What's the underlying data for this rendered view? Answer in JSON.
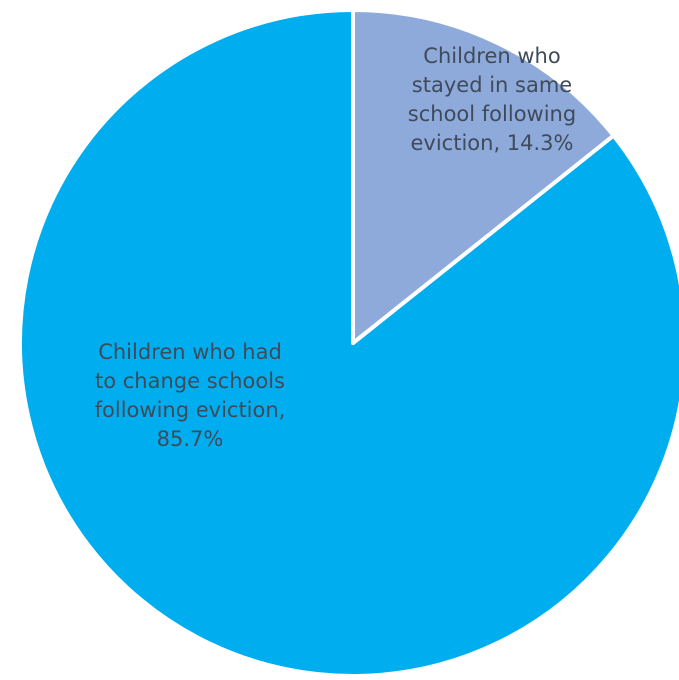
{
  "chart_data": {
    "type": "pie",
    "title": "",
    "start_angle_deg": 0,
    "direction": "counterclockwise",
    "slices": [
      {
        "label": "Children  who had to change schools following eviction",
        "value": 85.7,
        "value_label": "85.7%",
        "display": "Children  who had\nto change schools\nfollowing eviction,\n85.7%",
        "color": "#00aeef"
      },
      {
        "label": "Children  who stayed in same school following eviction",
        "value": 14.3,
        "value_label": "14.3%",
        "display": "Children  who\nstayed in same\nschool following\neviction, 14.3%",
        "color": "#8eaadb"
      }
    ],
    "slice_border_color": "#ffffff",
    "legend": "none"
  }
}
